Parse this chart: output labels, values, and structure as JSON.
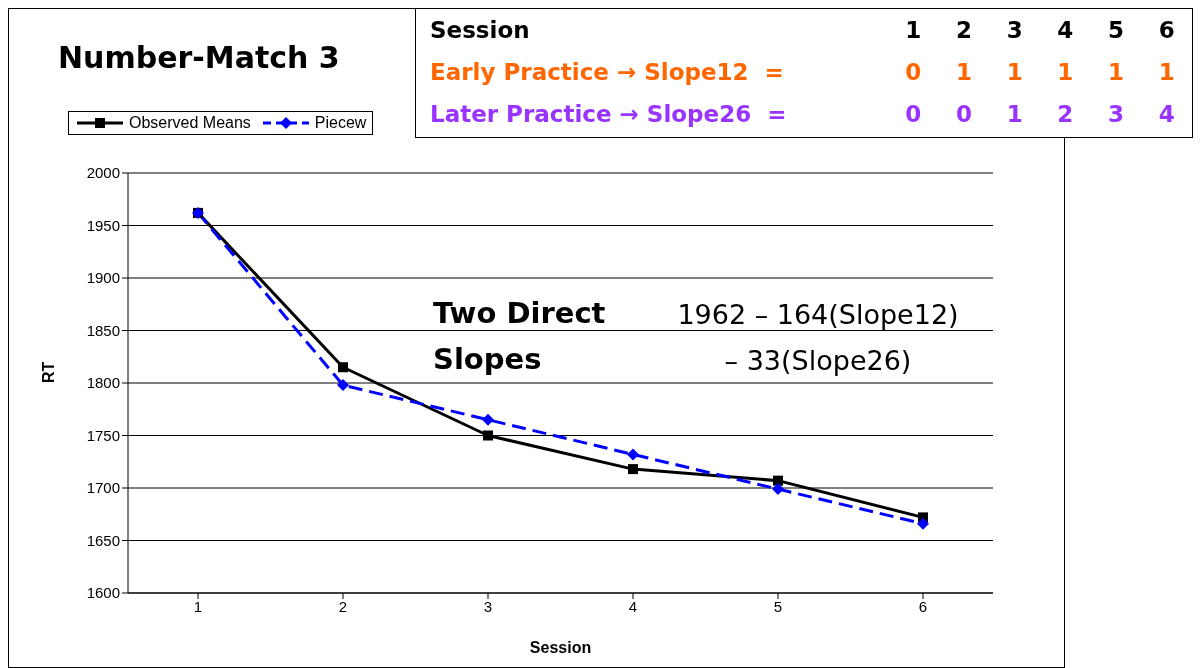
{
  "chart_data": {
    "type": "line",
    "title": "Number-Match 3",
    "xlabel": "Session",
    "ylabel": "RT",
    "categories": [
      "1",
      "2",
      "3",
      "4",
      "5",
      "6"
    ],
    "series": [
      {
        "name": "Observed Means",
        "color": "#000000",
        "values": [
          1962,
          1815,
          1750,
          1718,
          1707,
          1672
        ],
        "marker": "square",
        "line_style": "solid"
      },
      {
        "name": "Piecew",
        "color": "#0000ff",
        "values": [
          1962,
          1798,
          1765,
          1732,
          1699,
          1666
        ],
        "marker": "diamond",
        "line_style": "dashed"
      }
    ],
    "ylim": [
      1600,
      2000
    ],
    "yticks": [
      1600,
      1650,
      1700,
      1750,
      1800,
      1850,
      1900,
      1950,
      2000
    ],
    "grid": "y",
    "legend": "top left",
    "annotations": [
      "Session\t1\t2\t3\t4\t5\t6",
      "Early Practice → Slope12  =\t0\t1\t1\t1\t1\t1",
      "Later Practice → Slope26  =\t0\t0\t1\t2\t3\t4",
      "Two Direct Slopes",
      "1962 – 164(Slope12) – 33(Slope26)"
    ]
  }
}
